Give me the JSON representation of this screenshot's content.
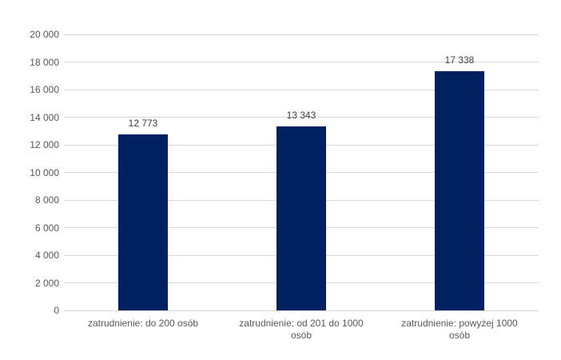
{
  "chart_data": {
    "type": "bar",
    "title": "",
    "xlabel": "",
    "ylabel": "",
    "categories": [
      "zatrudnienie: do 200 osób",
      "zatrudnienie: od 201 do 1000 osób",
      "zatrudnienie: powyżej 1000 osób"
    ],
    "category_label_lines": [
      [
        "zatrudnienie: do 200 osób"
      ],
      [
        "zatrudnienie: od 201 do 1000",
        "osób"
      ],
      [
        "zatrudnienie: powyżej 1000",
        "osób"
      ]
    ],
    "values": [
      12773,
      13343,
      17338
    ],
    "value_labels": [
      "12 773",
      "13 343",
      "17 338"
    ],
    "ylim": [
      0,
      20000
    ],
    "yticks": [
      0,
      2000,
      4000,
      6000,
      8000,
      10000,
      12000,
      14000,
      16000,
      18000,
      20000
    ],
    "ytick_labels": [
      "0",
      "2 000",
      "4 000",
      "6 000",
      "8 000",
      "10 000",
      "12 000",
      "14 000",
      "16 000",
      "18 000",
      "20 000"
    ],
    "legend": null,
    "grid": "horizontal",
    "colors": {
      "bar": "#002060",
      "gridline": "#d9d9d9",
      "axis_text": "#595959",
      "value_text": "#404040",
      "background": "#ffffff"
    }
  }
}
